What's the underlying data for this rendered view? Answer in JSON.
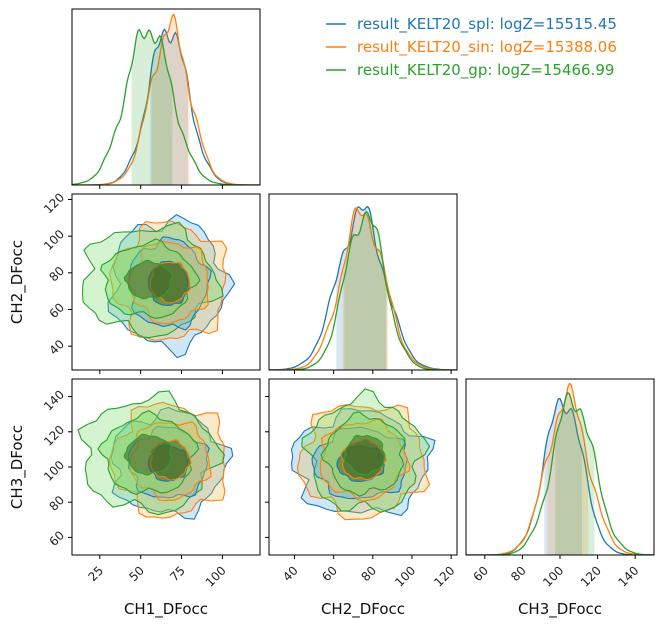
{
  "chart_data": {
    "type": "corner",
    "parameters": [
      "CH1_DFocc",
      "CH2_DFocc",
      "CH3_DFocc"
    ],
    "ranges": {
      "CH1_DFocc": [
        8,
        123
      ],
      "CH2_DFocc": [
        27,
        123
      ],
      "CH3_DFocc": [
        50,
        150
      ]
    },
    "ticks": {
      "CH1_DFocc": [
        25,
        50,
        75,
        100
      ],
      "CH2_DFocc": [
        40,
        60,
        80,
        100,
        120
      ],
      "CH3_DFocc": [
        60,
        80,
        100,
        120,
        140
      ]
    },
    "tick_labels": {
      "CH1_DFocc": [
        "25",
        "50",
        "75",
        "100"
      ],
      "CH2_DFocc": [
        "40",
        "60",
        "80",
        "100",
        "120"
      ],
      "CH3_DFocc": [
        "60",
        "80",
        "100",
        "120",
        "140"
      ]
    },
    "series": [
      {
        "name": "result_KELT20_spl: logZ=15515.45",
        "color": "#1f77b4",
        "fill": "#5aaee8",
        "mean": {
          "CH1_DFocc": 67,
          "CH2_DFocc": 74,
          "CH3_DFocc": 102
        },
        "sd": {
          "CH1_DFocc": 12,
          "CH2_DFocc": 12,
          "CH3_DFocc": 10
        },
        "interval": {
          "CH1_DFocc": [
            55,
            79
          ],
          "CH2_DFocc": [
            61,
            87
          ],
          "CH3_DFocc": [
            91,
            112
          ]
        }
      },
      {
        "name": "result_KELT20_sin: logZ=15388.06",
        "color": "#ff7f0e",
        "fill": "#f2b84a",
        "mean": {
          "CH1_DFocc": 68,
          "CH2_DFocc": 75,
          "CH3_DFocc": 104
        },
        "sd": {
          "CH1_DFocc": 12,
          "CH2_DFocc": 11,
          "CH3_DFocc": 11
        },
        "interval": {
          "CH1_DFocc": [
            56,
            80
          ],
          "CH2_DFocc": [
            64,
            88
          ],
          "CH3_DFocc": [
            93,
            115
          ]
        }
      },
      {
        "name": "result_KELT20_gp: logZ=15466.99",
        "color": "#2ca02c",
        "fill": "#6edc5e",
        "mean": {
          "CH1_DFocc": 55,
          "CH2_DFocc": 76,
          "CH3_DFocc": 107
        },
        "sd": {
          "CH1_DFocc": 14,
          "CH2_DFocc": 10,
          "CH3_DFocc": 11
        },
        "interval": {
          "CH1_DFocc": [
            44,
            70
          ],
          "CH2_DFocc": [
            65,
            87
          ],
          "CH3_DFocc": [
            97,
            119
          ]
        }
      }
    ],
    "contour_levels": [
      "1-sigma",
      "2-sigma",
      "3-sigma"
    ],
    "legend_placement": "top-right",
    "grid": false
  }
}
